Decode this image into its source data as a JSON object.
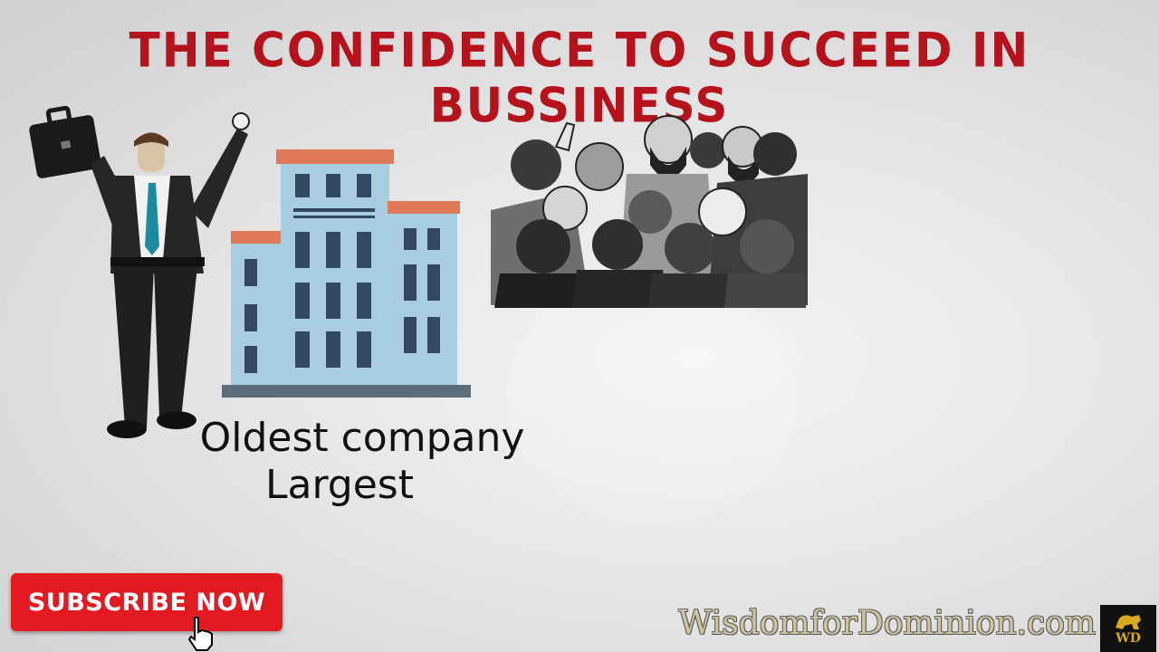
{
  "title": "THE CONFIDENCE TO SUCCEED IN BUSSINESS",
  "captions": {
    "line1": "Oldest company",
    "line2": "Largest"
  },
  "subscribe_button": {
    "label": "SUBSCRIBE NOW"
  },
  "watermark": "WisdomforDominion.com",
  "logo": {
    "text": "WD"
  },
  "colors": {
    "title": "#b5121b",
    "subscribe_bg": "#e21b23",
    "building_body": "#a9cde0",
    "building_roof": "#e0785a",
    "logo_gold": "#d8a820"
  },
  "illustrations": {
    "businessman": "businessman-icon",
    "building": "office-building-icon",
    "crowd": "crowd-icon"
  }
}
